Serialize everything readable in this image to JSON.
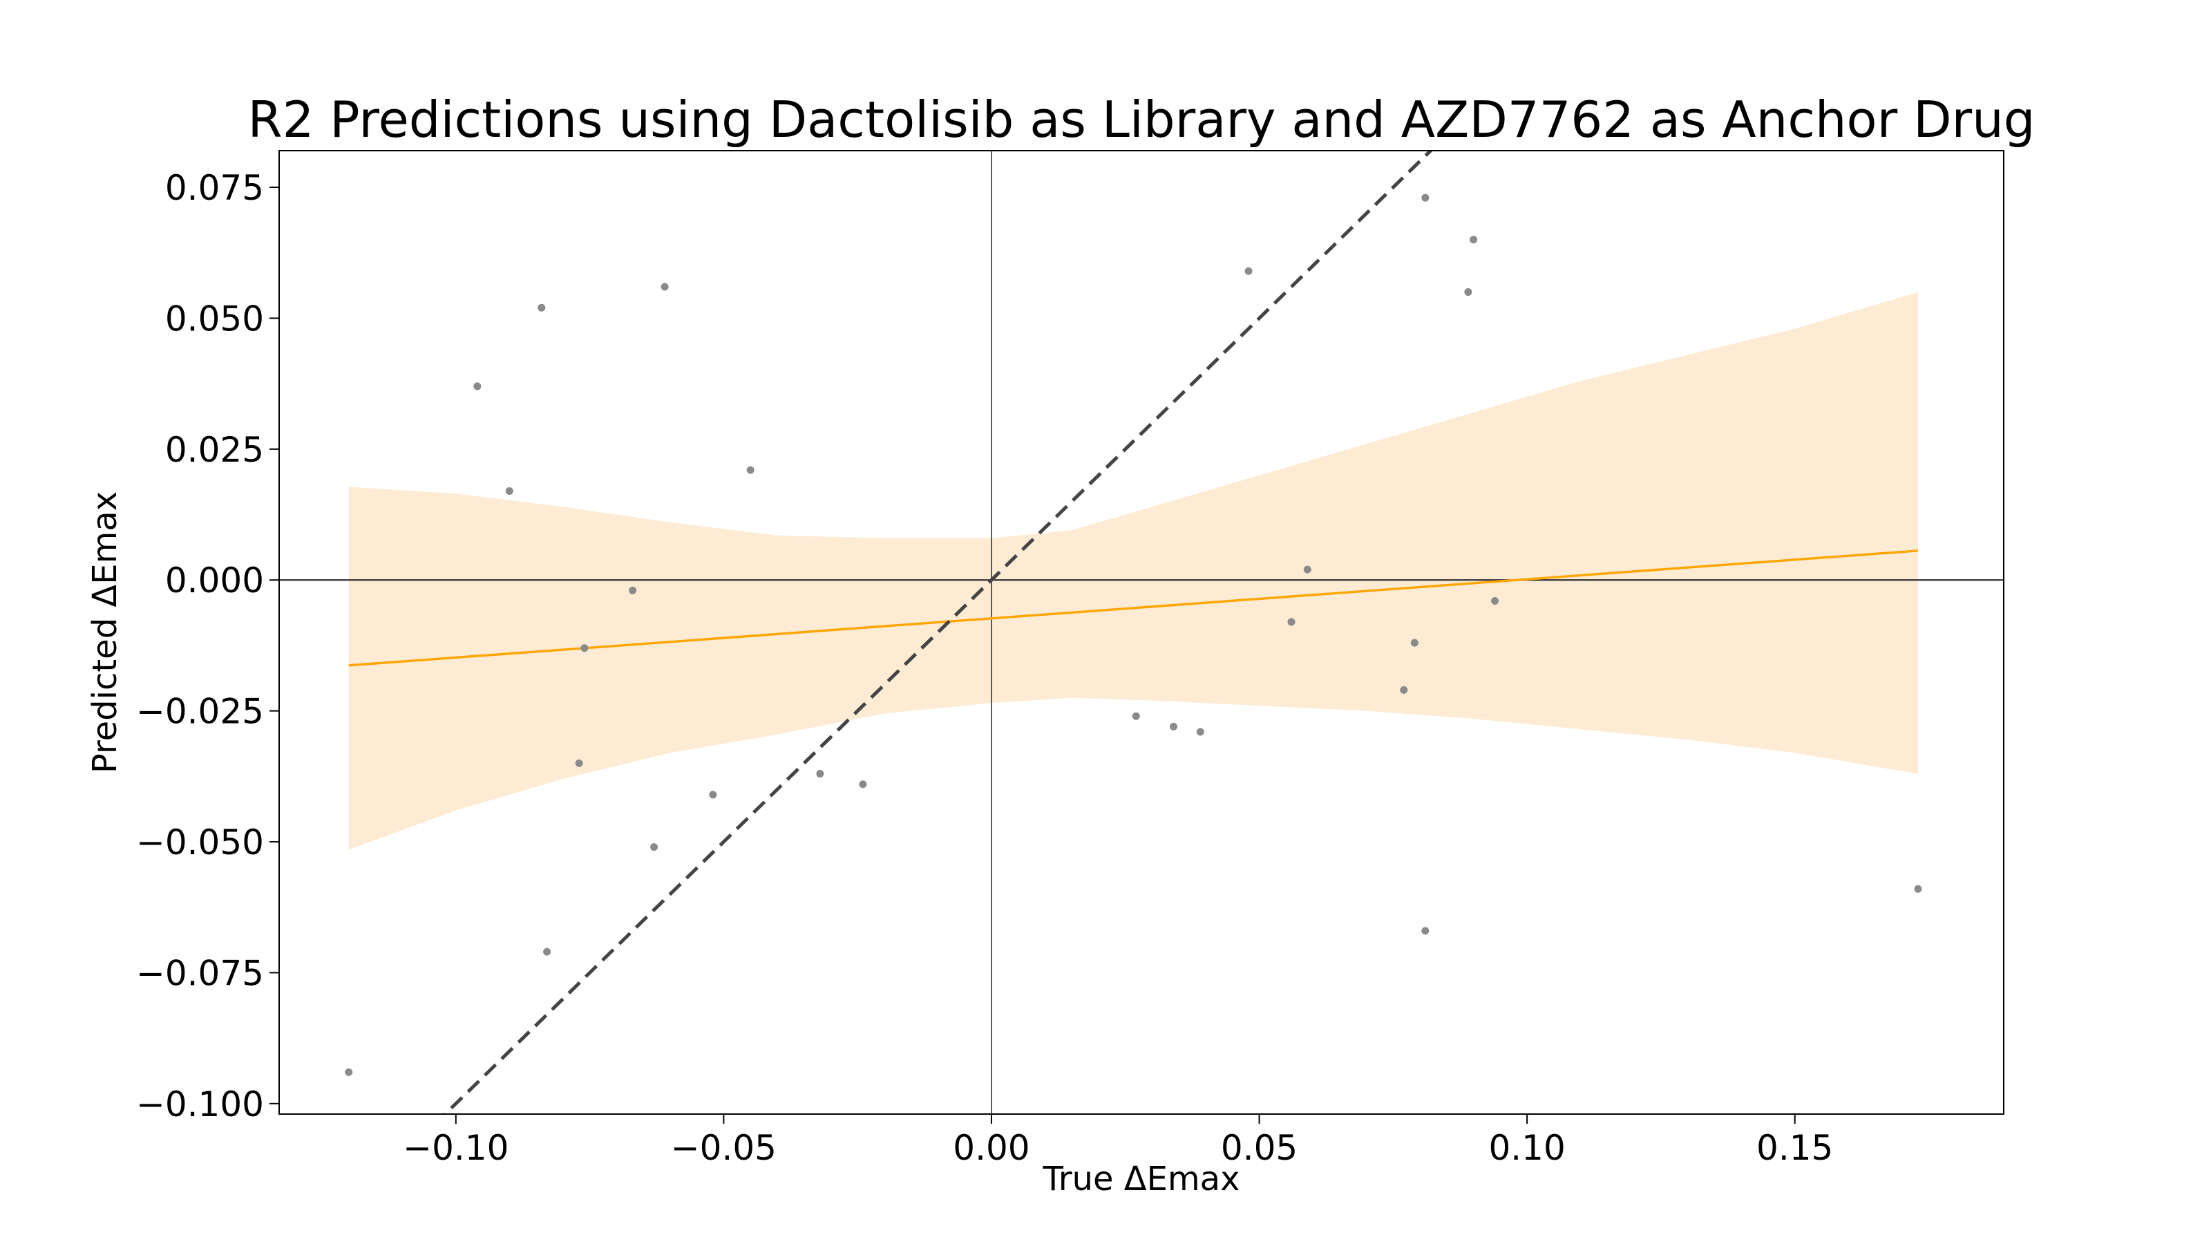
{
  "chart_data": {
    "type": "scatter",
    "title": "R2 Predictions using Dactolisib as Library and AZD7762 as Anchor Drug",
    "xlabel": "True ΔEmax",
    "ylabel": "Predicted ΔEmax",
    "xlim": [
      -0.133,
      0.189
    ],
    "ylim": [
      -0.102,
      0.082
    ],
    "xticks": [
      -0.1,
      -0.05,
      0.0,
      0.05,
      0.1,
      0.15
    ],
    "xtick_labels": [
      "−0.10",
      "−0.05",
      "0.00",
      "0.05",
      "0.10",
      "0.15"
    ],
    "yticks": [
      -0.1,
      -0.075,
      -0.05,
      -0.025,
      0.0,
      0.025,
      0.05,
      0.075
    ],
    "ytick_labels": [
      "−0.100",
      "−0.075",
      "−0.050",
      "−0.025",
      "0.000",
      "0.025",
      "0.050",
      "0.075"
    ],
    "grid": false,
    "legend": "none",
    "colors": {
      "points": "#8a8a8a",
      "regression_line": "#ffa500",
      "confidence_band": "#fdebd3",
      "identity_line": "#444444",
      "zero_lines": "#333333"
    },
    "points": [
      {
        "x": -0.12,
        "y": -0.094
      },
      {
        "x": -0.096,
        "y": 0.037
      },
      {
        "x": -0.09,
        "y": 0.017
      },
      {
        "x": -0.084,
        "y": 0.052
      },
      {
        "x": -0.083,
        "y": -0.071
      },
      {
        "x": -0.077,
        "y": -0.035
      },
      {
        "x": -0.076,
        "y": -0.013
      },
      {
        "x": -0.067,
        "y": -0.002
      },
      {
        "x": -0.063,
        "y": -0.051
      },
      {
        "x": -0.061,
        "y": 0.056
      },
      {
        "x": -0.052,
        "y": -0.041
      },
      {
        "x": -0.045,
        "y": 0.021
      },
      {
        "x": -0.032,
        "y": -0.037
      },
      {
        "x": -0.024,
        "y": -0.039
      },
      {
        "x": 0.027,
        "y": -0.026
      },
      {
        "x": 0.034,
        "y": -0.028
      },
      {
        "x": 0.039,
        "y": -0.029
      },
      {
        "x": 0.048,
        "y": 0.059
      },
      {
        "x": 0.056,
        "y": -0.008
      },
      {
        "x": 0.059,
        "y": 0.002
      },
      {
        "x": 0.077,
        "y": -0.021
      },
      {
        "x": 0.079,
        "y": -0.012
      },
      {
        "x": 0.081,
        "y": 0.073
      },
      {
        "x": 0.081,
        "y": -0.067
      },
      {
        "x": 0.089,
        "y": 0.055
      },
      {
        "x": 0.09,
        "y": 0.065
      },
      {
        "x": 0.094,
        "y": -0.004
      },
      {
        "x": 0.173,
        "y": -0.059
      }
    ],
    "regression": {
      "x": [
        -0.12,
        0.173
      ],
      "y": [
        -0.0163,
        0.0056
      ]
    },
    "confidence_band": {
      "x": [
        -0.12,
        -0.1,
        -0.08,
        -0.06,
        -0.04,
        -0.02,
        0.0,
        0.015,
        0.03,
        0.05,
        0.07,
        0.09,
        0.11,
        0.13,
        0.15,
        0.173
      ],
      "upper": [
        0.0178,
        0.0165,
        0.014,
        0.011,
        0.0085,
        0.008,
        0.008,
        0.0095,
        0.014,
        0.02,
        0.026,
        0.032,
        0.038,
        0.043,
        0.048,
        0.055
      ],
      "lower": [
        -0.0515,
        -0.044,
        -0.038,
        -0.033,
        -0.0295,
        -0.0255,
        -0.0235,
        -0.0225,
        -0.023,
        -0.024,
        -0.025,
        -0.0265,
        -0.0285,
        -0.0305,
        -0.033,
        -0.037
      ]
    },
    "identity_line": {
      "x": [
        -0.104,
        0.083
      ],
      "y": [
        -0.104,
        0.083
      ]
    },
    "reference_lines": {
      "vertical_x": 0.0,
      "horizontal_y": 0.0
    }
  }
}
